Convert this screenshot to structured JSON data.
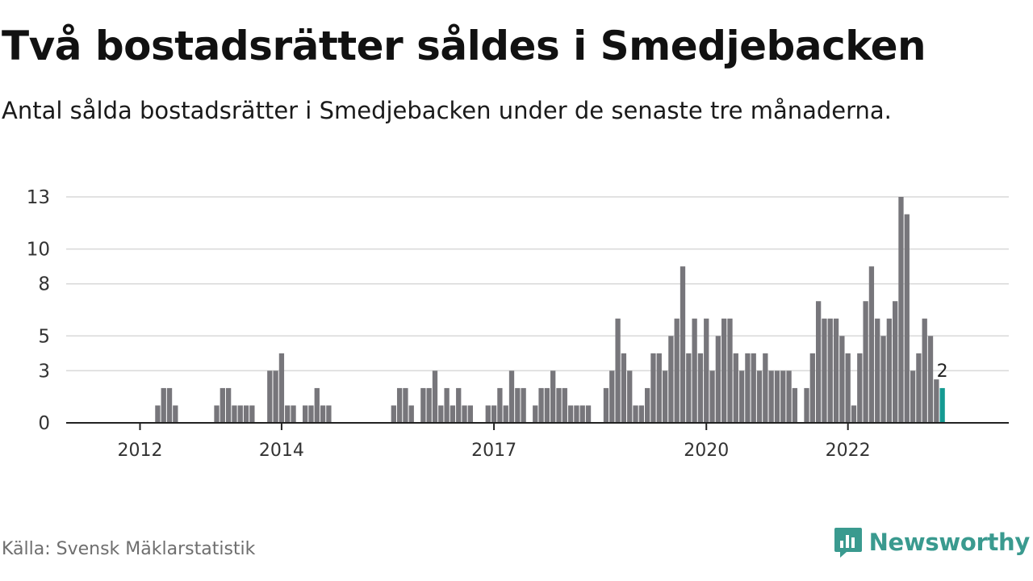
{
  "title": "Två bostadsrätter såldes i Smedjebacken",
  "subtitle": "Antal sålda bostadsrätter i Smedjebacken under de senaste tre månaderna.",
  "source": "Källa: Svensk Mäklarstatistik",
  "logo": {
    "text": "Newsworthy",
    "icon": "newsworthy-logo-icon",
    "color": "#3a9a8f"
  },
  "colors": {
    "bar": "#77767b",
    "highlight": "#159a92",
    "grid": "#d9d9d9",
    "axis": "#222222"
  },
  "chart_data": {
    "type": "bar",
    "title": "Två bostadsrätter såldes i Smedjebacken",
    "xlabel": "",
    "ylabel": "",
    "ylim": [
      0,
      13
    ],
    "yticks": [
      0,
      3,
      5,
      8,
      10,
      13
    ],
    "ytick_labels": [
      "0",
      "3",
      "5",
      "8",
      "10",
      "13"
    ],
    "xticks": [
      {
        "label": "2012",
        "date": "2012-01"
      },
      {
        "label": "2014",
        "date": "2014-01"
      },
      {
        "label": "2017",
        "date": "2017-01"
      },
      {
        "label": "2020",
        "date": "2020-01"
      },
      {
        "label": "2022",
        "date": "2022-01"
      }
    ],
    "grid": true,
    "start": "2011-05",
    "series": [
      {
        "values": [
          0,
          0,
          0,
          0,
          0,
          0,
          0,
          0,
          0,
          0,
          0,
          1,
          2,
          2,
          1,
          0,
          0,
          0,
          0,
          0,
          0,
          1,
          2,
          2,
          1,
          1,
          1,
          1,
          0,
          0,
          3,
          3,
          4,
          1,
          1,
          0,
          1,
          1,
          2,
          1,
          1,
          0,
          0,
          0,
          0,
          0,
          0,
          0,
          0,
          0,
          0,
          1,
          2,
          2,
          1,
          0,
          2,
          2,
          3,
          1,
          2,
          1,
          2,
          1,
          1,
          0,
          0,
          1,
          1,
          2,
          1,
          3,
          2,
          2,
          0,
          1,
          2,
          2,
          3,
          2,
          2,
          1,
          1,
          1,
          1,
          0,
          0,
          2,
          3,
          6,
          4,
          3,
          1,
          1,
          2,
          4,
          4,
          3,
          5,
          6,
          9,
          4,
          6,
          4,
          6,
          3,
          5,
          6,
          6,
          4,
          3,
          4,
          4,
          3,
          4,
          3,
          3,
          3,
          3,
          2,
          0,
          2,
          4,
          7,
          6,
          6,
          6,
          5,
          4,
          1,
          4,
          7,
          9,
          6,
          5,
          6,
          7,
          13,
          12,
          3,
          4,
          6,
          5,
          2.5,
          2
        ]
      }
    ],
    "last_value_label": "2"
  }
}
